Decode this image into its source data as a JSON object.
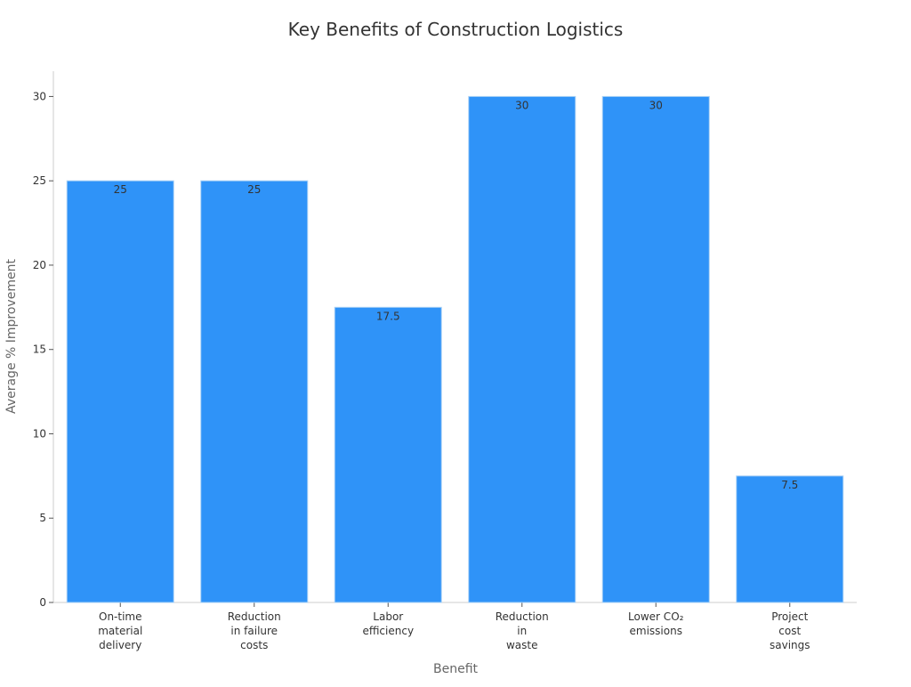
{
  "chart_data": {
    "type": "bar",
    "title": "Key Benefits of Construction Logistics",
    "xlabel": "Benefit",
    "ylabel": "Average % Improvement",
    "categories": [
      "On-time\nmaterial\ndelivery",
      "Reduction\nin failure\ncosts",
      "Labor\nefficiency",
      "Reduction\nin\nwaste",
      "Lower CO₂\nemissions",
      "Project\ncost\nsavings"
    ],
    "values": [
      25,
      25,
      17.5,
      30,
      30,
      7.5
    ],
    "data_labels": [
      "25",
      "25",
      "17.5",
      "30",
      "30",
      "7.5"
    ],
    "yticks": [
      0,
      5,
      10,
      15,
      20,
      25,
      30
    ],
    "ylim": [
      0,
      31.5
    ],
    "grid": false,
    "legend": "none",
    "colors": {
      "bar": "#2f93f8",
      "bar_edge": "#a8d0f5",
      "axis": "#cccccc",
      "text": "#333333",
      "label": "#666666"
    }
  }
}
